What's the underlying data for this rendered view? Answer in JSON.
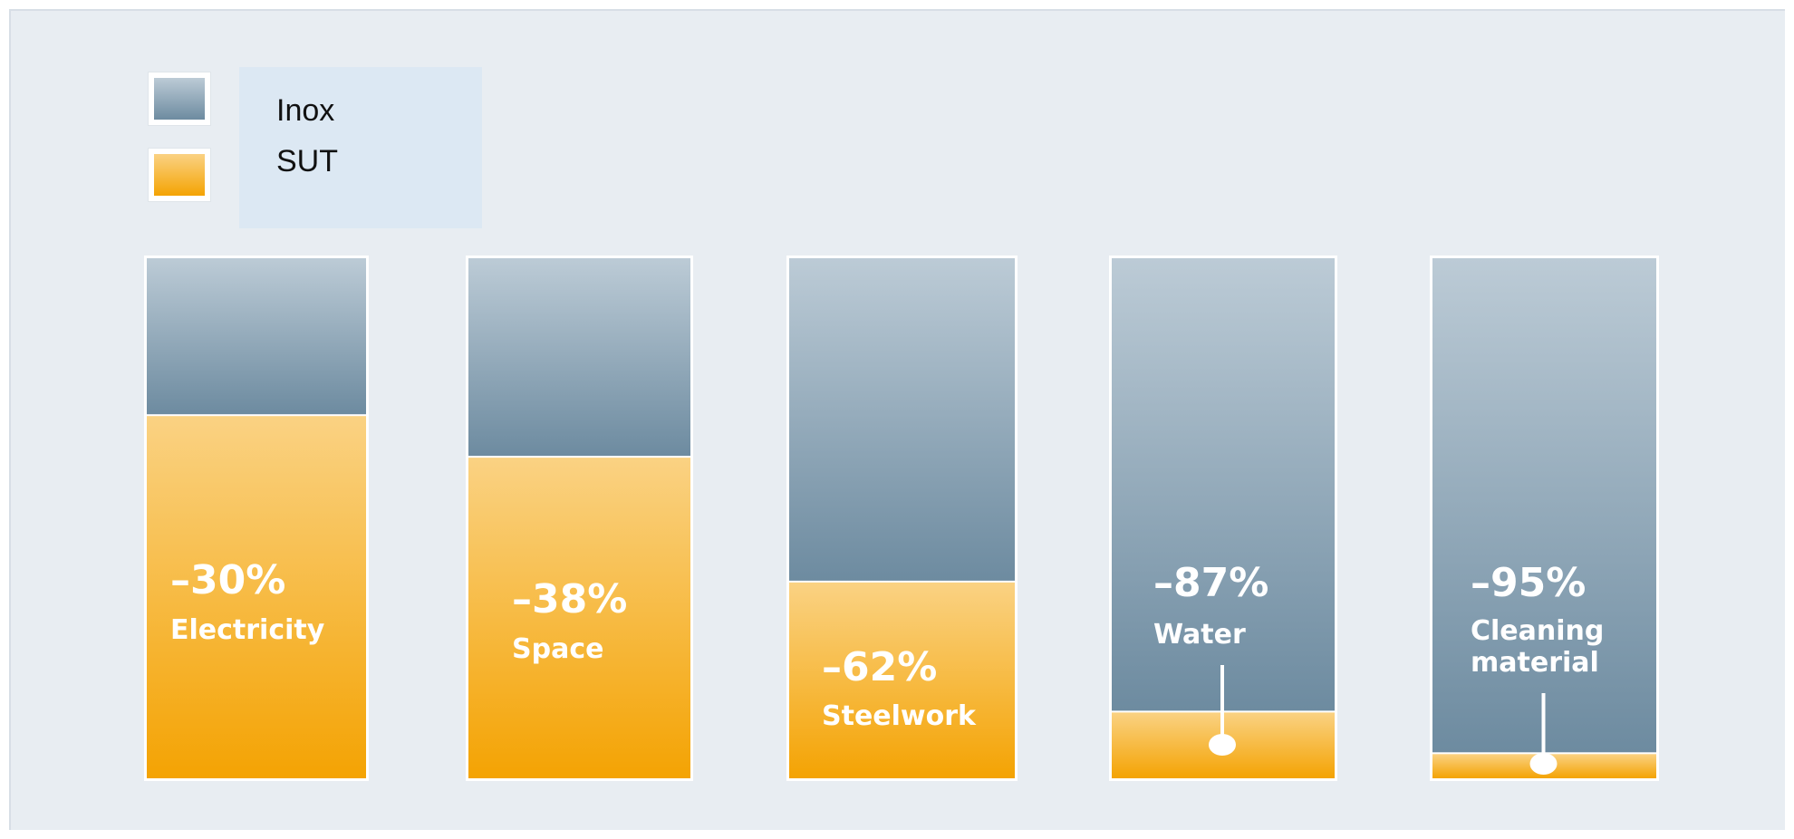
{
  "colors": {
    "inox_top": "#bccbd6",
    "inox_bottom": "#6d8ba0",
    "sut_top": "#fad283",
    "sut_bottom": "#f4a303",
    "panel_bg": "#e8edf2",
    "legend_bg": "#dce8f3"
  },
  "legend": {
    "inox_label": "Inox",
    "sut_label": "SUT"
  },
  "chart_data": {
    "type": "bar",
    "stacked": true,
    "categories": [
      "Electricity",
      "Space",
      "Steelwork",
      "Water",
      "Cleaning material"
    ],
    "series": [
      {
        "name": "Inox",
        "values": [
          30,
          38,
          62,
          87,
          95
        ]
      },
      {
        "name": "SUT",
        "values": [
          70,
          62,
          38,
          13,
          5
        ]
      }
    ],
    "data_labels": [
      "–30%",
      "–38%",
      "–62%",
      "–87%",
      "–95%"
    ],
    "category_labels": [
      [
        "Electricity"
      ],
      [
        "Space"
      ],
      [
        "Steelwork"
      ],
      [
        "Water"
      ],
      [
        "Cleaning",
        "material"
      ]
    ],
    "ylim": [
      0,
      100
    ],
    "legend_position": "top-left",
    "grid": false
  }
}
